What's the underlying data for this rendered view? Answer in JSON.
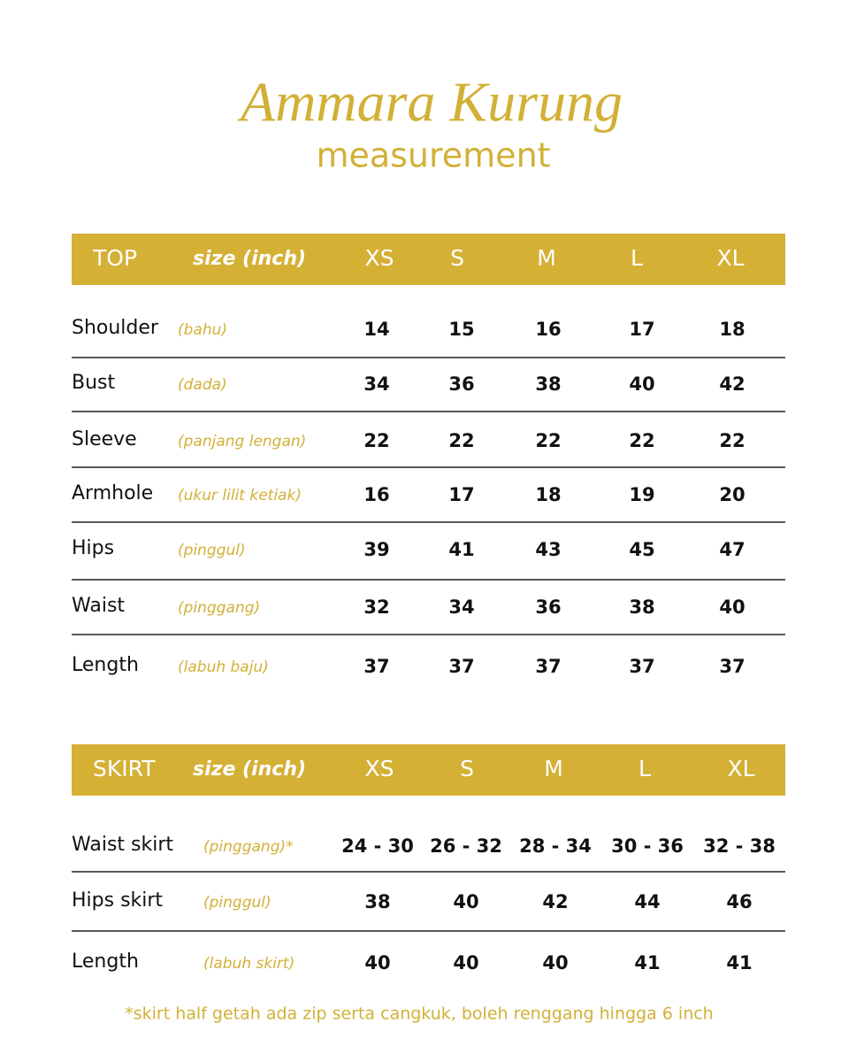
{
  "title": "Ammara Kurung",
  "subtitle": "measurement",
  "tables": [
    {
      "header": [
        "TOP",
        "size (inch)",
        "XS",
        "S",
        "M",
        "L",
        "XL"
      ],
      "rows": [
        {
          "label": "Shoulder",
          "note": "(bahu)",
          "values": [
            14,
            15,
            16,
            17,
            18
          ]
        },
        {
          "label": "Bust",
          "note": "(dada)",
          "values": [
            34,
            36,
            38,
            40,
            42
          ]
        },
        {
          "label": "Sleeve",
          "note": "(panjang lengan)",
          "values": [
            22,
            22,
            22,
            22,
            22
          ]
        },
        {
          "label": "Armhole",
          "note": "(ukur lilit ketiak)",
          "values": [
            16,
            17,
            18,
            19,
            20
          ]
        },
        {
          "label": "Hips",
          "note": "(pinggul)",
          "values": [
            39,
            41,
            43,
            45,
            47
          ]
        },
        {
          "label": "Waist",
          "note": "(pinggang)",
          "values": [
            32,
            34,
            36,
            38,
            40
          ]
        },
        {
          "label": "Length",
          "note": "(labuh baju)",
          "values": [
            37,
            37,
            37,
            37,
            37
          ]
        }
      ]
    },
    {
      "header": [
        "SKIRT",
        "size (inch)",
        "XS",
        "S",
        "M",
        "L",
        "XL"
      ],
      "rows": [
        {
          "label": "Waist skirt",
          "note": "(pinggang)*",
          "values": [
            "24 - 30",
            "26 - 32",
            "28 - 34",
            "30 - 36",
            "32 - 38"
          ]
        },
        {
          "label": "Hips skirt",
          "note": "(pinggul)",
          "values": [
            38,
            40,
            42,
            44,
            46
          ]
        },
        {
          "label": "Length",
          "note": "(labuh skirt)",
          "values": [
            40,
            40,
            40,
            41,
            41
          ]
        }
      ]
    }
  ],
  "footnote": "*skirt half getah ada zip serta cangkuk, boleh renggang hingga 6 inch"
}
